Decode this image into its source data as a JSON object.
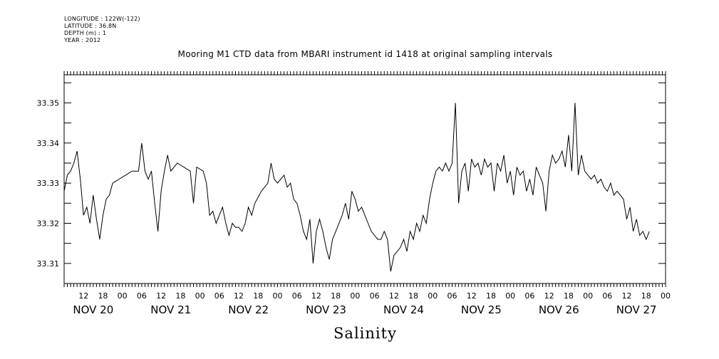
{
  "meta": {
    "longitude": "LONGITUDE : 122W(-122)",
    "latitude": "LATITUDE : 36.8N",
    "depth": "DEPTH (m) : 1",
    "year": "YEAR : 2012"
  },
  "chart_data": {
    "type": "line",
    "title": "Mooring M1 CTD data from MBARI instrument id 1418 at original sampling intervals",
    "xlabel": "Salinity",
    "ylabel": "",
    "xlim": [
      "2012-11-19T15:00",
      "2012-11-27T09:00"
    ],
    "ylim": [
      33.305,
      33.357
    ],
    "yticks": [
      "33.31",
      "33.32",
      "33.33",
      "33.34",
      "33.35"
    ],
    "hour_tick_labels": [
      "12",
      "18",
      "00",
      "06",
      "12",
      "18",
      "00",
      "06",
      "12",
      "18",
      "00",
      "06",
      "12",
      "18",
      "00",
      "06",
      "12",
      "18",
      "00",
      "06",
      "12",
      "18",
      "00",
      "06",
      "12",
      "18",
      "00",
      "06",
      "12",
      "18",
      "00",
      "06"
    ],
    "day_labels": [
      "NOV 20",
      "NOV 21",
      "NOV 22",
      "NOV 23",
      "NOV 24",
      "NOV 25",
      "NOV 26",
      "NOV 27"
    ],
    "grid": false,
    "series": [
      {
        "color": "#000000",
        "points": [
          [
            "2012-11-19T15:00",
            33.328
          ],
          [
            "2012-11-19T16:00",
            33.332
          ],
          [
            "2012-11-19T17:00",
            33.333
          ],
          [
            "2012-11-19T18:00",
            33.335
          ],
          [
            "2012-11-19T19:00",
            33.338
          ],
          [
            "2012-11-19T20:00",
            33.331
          ],
          [
            "2012-11-19T21:00",
            33.322
          ],
          [
            "2012-11-19T22:00",
            33.324
          ],
          [
            "2012-11-19T23:00",
            33.32
          ],
          [
            "2012-11-20T00:00",
            33.327
          ],
          [
            "2012-11-20T01:00",
            33.321
          ],
          [
            "2012-11-20T02:00",
            33.316
          ],
          [
            "2012-11-20T03:00",
            33.322
          ],
          [
            "2012-11-20T04:00",
            33.326
          ],
          [
            "2012-11-20T05:00",
            33.327
          ],
          [
            "2012-11-20T06:00",
            33.33
          ],
          [
            "2012-11-20T08:00",
            33.331
          ],
          [
            "2012-11-20T10:00",
            33.332
          ],
          [
            "2012-11-20T12:00",
            33.333
          ],
          [
            "2012-11-20T14:00",
            33.333
          ],
          [
            "2012-11-20T15:00",
            33.34
          ],
          [
            "2012-11-20T16:00",
            33.333
          ],
          [
            "2012-11-20T17:00",
            33.331
          ],
          [
            "2012-11-20T18:00",
            33.333
          ],
          [
            "2012-11-20T19:00",
            33.325
          ],
          [
            "2012-11-20T20:00",
            33.318
          ],
          [
            "2012-11-20T21:00",
            33.328
          ],
          [
            "2012-11-20T22:00",
            33.333
          ],
          [
            "2012-11-20T23:00",
            33.337
          ],
          [
            "2012-11-21T00:00",
            33.333
          ],
          [
            "2012-11-21T02:00",
            33.335
          ],
          [
            "2012-11-21T04:00",
            33.334
          ],
          [
            "2012-11-21T06:00",
            33.333
          ],
          [
            "2012-11-21T07:00",
            33.325
          ],
          [
            "2012-11-21T08:00",
            33.334
          ],
          [
            "2012-11-21T10:00",
            33.333
          ],
          [
            "2012-11-21T11:00",
            33.33
          ],
          [
            "2012-11-21T12:00",
            33.322
          ],
          [
            "2012-11-21T13:00",
            33.323
          ],
          [
            "2012-11-21T14:00",
            33.32
          ],
          [
            "2012-11-21T15:00",
            33.322
          ],
          [
            "2012-11-21T16:00",
            33.324
          ],
          [
            "2012-11-21T17:00",
            33.32
          ],
          [
            "2012-11-21T18:00",
            33.317
          ],
          [
            "2012-11-21T19:00",
            33.32
          ],
          [
            "2012-11-21T20:00",
            33.319
          ],
          [
            "2012-11-21T21:00",
            33.319
          ],
          [
            "2012-11-21T22:00",
            33.318
          ],
          [
            "2012-11-21T23:00",
            33.32
          ],
          [
            "2012-11-22T00:00",
            33.324
          ],
          [
            "2012-11-22T01:00",
            33.322
          ],
          [
            "2012-11-22T02:00",
            33.325
          ],
          [
            "2012-11-22T04:00",
            33.328
          ],
          [
            "2012-11-22T06:00",
            33.33
          ],
          [
            "2012-11-22T07:00",
            33.335
          ],
          [
            "2012-11-22T08:00",
            33.331
          ],
          [
            "2012-11-22T09:00",
            33.33
          ],
          [
            "2012-11-22T10:00",
            33.331
          ],
          [
            "2012-11-22T11:00",
            33.332
          ],
          [
            "2012-11-22T12:00",
            33.329
          ],
          [
            "2012-11-22T13:00",
            33.33
          ],
          [
            "2012-11-22T14:00",
            33.326
          ],
          [
            "2012-11-22T15:00",
            33.325
          ],
          [
            "2012-11-22T16:00",
            33.322
          ],
          [
            "2012-11-22T17:00",
            33.318
          ],
          [
            "2012-11-22T18:00",
            33.316
          ],
          [
            "2012-11-22T19:00",
            33.321
          ],
          [
            "2012-11-22T20:00",
            33.31
          ],
          [
            "2012-11-22T21:00",
            33.318
          ],
          [
            "2012-11-22T22:00",
            33.321
          ],
          [
            "2012-11-22T23:00",
            33.318
          ],
          [
            "2012-11-23T00:00",
            33.314
          ],
          [
            "2012-11-23T01:00",
            33.311
          ],
          [
            "2012-11-23T02:00",
            33.316
          ],
          [
            "2012-11-23T03:00",
            33.318
          ],
          [
            "2012-11-23T04:00",
            33.32
          ],
          [
            "2012-11-23T05:00",
            33.322
          ],
          [
            "2012-11-23T06:00",
            33.325
          ],
          [
            "2012-11-23T07:00",
            33.321
          ],
          [
            "2012-11-23T08:00",
            33.328
          ],
          [
            "2012-11-23T09:00",
            33.326
          ],
          [
            "2012-11-23T10:00",
            33.323
          ],
          [
            "2012-11-23T11:00",
            33.324
          ],
          [
            "2012-11-23T12:00",
            33.322
          ],
          [
            "2012-11-23T13:00",
            33.32
          ],
          [
            "2012-11-23T14:00",
            33.318
          ],
          [
            "2012-11-23T15:00",
            33.317
          ],
          [
            "2012-11-23T16:00",
            33.316
          ],
          [
            "2012-11-23T17:00",
            33.316
          ],
          [
            "2012-11-23T18:00",
            33.318
          ],
          [
            "2012-11-23T19:00",
            33.316
          ],
          [
            "2012-11-23T20:00",
            33.308
          ],
          [
            "2012-11-23T21:00",
            33.312
          ],
          [
            "2012-11-23T22:00",
            33.313
          ],
          [
            "2012-11-23T23:00",
            33.314
          ],
          [
            "2012-11-24T00:00",
            33.316
          ],
          [
            "2012-11-24T01:00",
            33.313
          ],
          [
            "2012-11-24T02:00",
            33.318
          ],
          [
            "2012-11-24T03:00",
            33.316
          ],
          [
            "2012-11-24T04:00",
            33.32
          ],
          [
            "2012-11-24T05:00",
            33.318
          ],
          [
            "2012-11-24T06:00",
            33.322
          ],
          [
            "2012-11-24T07:00",
            33.32
          ],
          [
            "2012-11-24T08:00",
            33.326
          ],
          [
            "2012-11-24T09:00",
            33.33
          ],
          [
            "2012-11-24T10:00",
            33.333
          ],
          [
            "2012-11-24T11:00",
            33.334
          ],
          [
            "2012-11-24T12:00",
            33.333
          ],
          [
            "2012-11-24T13:00",
            33.335
          ],
          [
            "2012-11-24T14:00",
            33.333
          ],
          [
            "2012-11-24T15:00",
            33.335
          ],
          [
            "2012-11-24T16:00",
            33.35
          ],
          [
            "2012-11-24T17:00",
            33.325
          ],
          [
            "2012-11-24T18:00",
            33.333
          ],
          [
            "2012-11-24T19:00",
            33.335
          ],
          [
            "2012-11-24T20:00",
            33.328
          ],
          [
            "2012-11-24T21:00",
            33.336
          ],
          [
            "2012-11-24T22:00",
            33.334
          ],
          [
            "2012-11-24T23:00",
            33.335
          ],
          [
            "2012-11-25T00:00",
            33.332
          ],
          [
            "2012-11-25T01:00",
            33.336
          ],
          [
            "2012-11-25T02:00",
            33.334
          ],
          [
            "2012-11-25T03:00",
            33.335
          ],
          [
            "2012-11-25T04:00",
            33.328
          ],
          [
            "2012-11-25T05:00",
            33.335
          ],
          [
            "2012-11-25T06:00",
            33.333
          ],
          [
            "2012-11-25T07:00",
            33.337
          ],
          [
            "2012-11-25T08:00",
            33.33
          ],
          [
            "2012-11-25T09:00",
            33.333
          ],
          [
            "2012-11-25T10:00",
            33.327
          ],
          [
            "2012-11-25T11:00",
            33.334
          ],
          [
            "2012-11-25T12:00",
            33.332
          ],
          [
            "2012-11-25T13:00",
            33.333
          ],
          [
            "2012-11-25T14:00",
            33.328
          ],
          [
            "2012-11-25T15:00",
            33.331
          ],
          [
            "2012-11-25T16:00",
            33.327
          ],
          [
            "2012-11-25T17:00",
            33.334
          ],
          [
            "2012-11-25T18:00",
            33.332
          ],
          [
            "2012-11-25T19:00",
            33.33
          ],
          [
            "2012-11-25T20:00",
            33.323
          ],
          [
            "2012-11-25T21:00",
            33.333
          ],
          [
            "2012-11-25T22:00",
            33.337
          ],
          [
            "2012-11-25T23:00",
            33.335
          ],
          [
            "2012-11-26T00:00",
            33.336
          ],
          [
            "2012-11-26T01:00",
            33.338
          ],
          [
            "2012-11-26T02:00",
            33.334
          ],
          [
            "2012-11-26T03:00",
            33.342
          ],
          [
            "2012-11-26T04:00",
            33.333
          ],
          [
            "2012-11-26T05:00",
            33.35
          ],
          [
            "2012-11-26T06:00",
            33.332
          ],
          [
            "2012-11-26T07:00",
            33.337
          ],
          [
            "2012-11-26T08:00",
            33.333
          ],
          [
            "2012-11-26T09:00",
            33.332
          ],
          [
            "2012-11-26T10:00",
            33.331
          ],
          [
            "2012-11-26T11:00",
            33.332
          ],
          [
            "2012-11-26T12:00",
            33.33
          ],
          [
            "2012-11-26T13:00",
            33.331
          ],
          [
            "2012-11-26T14:00",
            33.329
          ],
          [
            "2012-11-26T15:00",
            33.328
          ],
          [
            "2012-11-26T16:00",
            33.33
          ],
          [
            "2012-11-26T17:00",
            33.327
          ],
          [
            "2012-11-26T18:00",
            33.328
          ],
          [
            "2012-11-26T19:00",
            33.327
          ],
          [
            "2012-11-26T20:00",
            33.326
          ],
          [
            "2012-11-26T21:00",
            33.321
          ],
          [
            "2012-11-26T22:00",
            33.324
          ],
          [
            "2012-11-26T23:00",
            33.318
          ],
          [
            "2012-11-27T00:00",
            33.321
          ],
          [
            "2012-11-27T01:00",
            33.317
          ],
          [
            "2012-11-27T02:00",
            33.318
          ],
          [
            "2012-11-27T03:00",
            33.316
          ],
          [
            "2012-11-27T04:00",
            33.318
          ]
        ]
      }
    ]
  }
}
